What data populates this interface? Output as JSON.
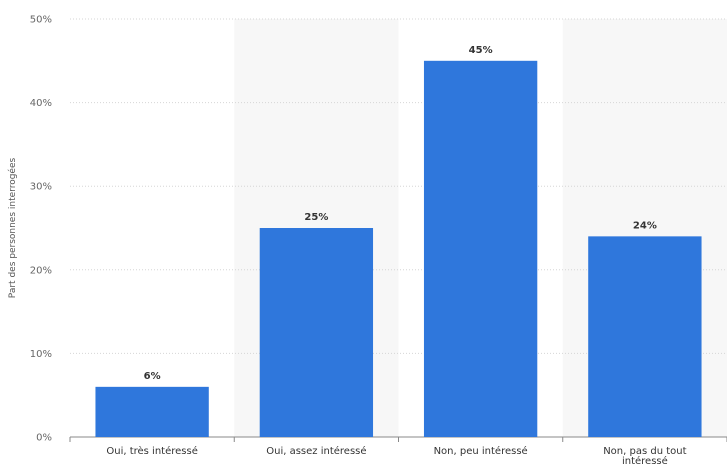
{
  "chart_data": {
    "type": "bar",
    "categories": [
      "Oui, très intéressé",
      "Oui, assez intéressé",
      "Non, peu intéressé",
      [
        "Non, pas du tout",
        "intéressé"
      ]
    ],
    "values": [
      6,
      25,
      45,
      24
    ],
    "data_labels": [
      "6%",
      "25%",
      "45%",
      "24%"
    ],
    "title": "",
    "xlabel": "",
    "ylabel": "Part des personnes interrogées",
    "ylim": [
      0,
      50
    ],
    "yticks": [
      0,
      10,
      20,
      30,
      40,
      50
    ],
    "ytick_labels": [
      "0%",
      "10%",
      "20%",
      "30%",
      "40%",
      "50%"
    ],
    "bar_color": "#2f77dc",
    "band_color": "#f7f7f7",
    "grid": true,
    "legend": "none"
  }
}
